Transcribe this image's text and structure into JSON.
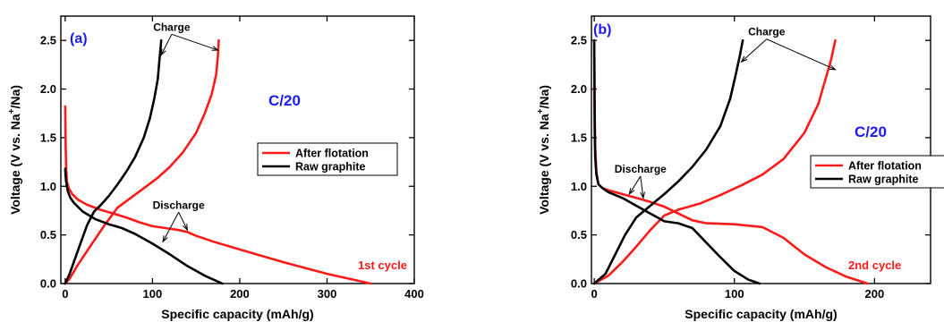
{
  "colors": {
    "after_flotation": "#ff1a1a",
    "raw_graphite": "#000000",
    "panel_label": "#1a1aff",
    "rate": "#1a1aff",
    "cycle": "#ff1a1a"
  },
  "chart_data": [
    {
      "type": "line",
      "panel_label": "(a)",
      "xlabel": "Specific capacity (mAh/g)",
      "ylabel": "Voltage (V vs. Na",
      "ylabel_sup": "+",
      "ylabel_tail": "/Na)",
      "xlim": [
        -5,
        400
      ],
      "ylim": [
        0,
        2.75
      ],
      "xticks": [
        0,
        100,
        200,
        300,
        400
      ],
      "xtick_labels": [
        "0",
        "100",
        "200",
        "300",
        "400"
      ],
      "yticks": [
        0,
        0.5,
        1.0,
        1.5,
        2.0,
        2.5
      ],
      "ytick_labels": [
        "0.0",
        "0.5",
        "1.0",
        "1.5",
        "2.0",
        "2.5"
      ],
      "rate_label": "C/20",
      "cycle_label": "1st cycle",
      "legend_placement": "center-right",
      "legend": [
        "After flotation",
        "Raw graphite"
      ],
      "annotations": [
        {
          "text": "Charge",
          "anchor": [
            122,
            2.6
          ],
          "targets": [
            [
              110,
              2.35
            ],
            [
              175,
              2.4
            ]
          ]
        },
        {
          "text": "Discharge",
          "anchor": [
            130,
            0.77
          ],
          "targets": [
            [
              112,
              0.43
            ],
            [
              140,
              0.55
            ]
          ]
        }
      ],
      "series": [
        {
          "name": "After flotation",
          "segment": "discharge",
          "x": [
            0,
            0.5,
            1,
            2,
            4,
            8,
            15,
            25,
            40,
            55,
            70,
            85,
            100,
            115,
            130,
            140,
            150,
            170,
            200,
            250,
            300,
            350
          ],
          "y": [
            1.82,
            1.4,
            1.2,
            1.05,
            0.98,
            0.92,
            0.86,
            0.81,
            0.76,
            0.72,
            0.68,
            0.63,
            0.59,
            0.57,
            0.55,
            0.53,
            0.49,
            0.43,
            0.35,
            0.22,
            0.1,
            0.0
          ]
        },
        {
          "name": "After flotation",
          "segment": "charge",
          "x": [
            0,
            5,
            15,
            30,
            45,
            55,
            60,
            75,
            90,
            105,
            120,
            135,
            150,
            160,
            168,
            173,
            175,
            176
          ],
          "y": [
            0.0,
            0.05,
            0.2,
            0.4,
            0.6,
            0.72,
            0.78,
            0.88,
            0.98,
            1.08,
            1.2,
            1.35,
            1.55,
            1.75,
            1.95,
            2.15,
            2.35,
            2.5
          ]
        },
        {
          "name": "Raw graphite",
          "segment": "discharge",
          "x": [
            0,
            0.5,
            1,
            2,
            3,
            6,
            10,
            20,
            35,
            50,
            65,
            80,
            100,
            120,
            140,
            160,
            180
          ],
          "y": [
            1.18,
            1.1,
            1.05,
            1.0,
            0.95,
            0.88,
            0.83,
            0.74,
            0.66,
            0.61,
            0.57,
            0.51,
            0.41,
            0.3,
            0.18,
            0.08,
            0.0
          ]
        },
        {
          "name": "Raw graphite",
          "segment": "charge",
          "x": [
            0,
            5,
            15,
            25,
            33,
            40,
            50,
            60,
            70,
            80,
            90,
            97,
            102,
            106,
            108,
            110
          ],
          "y": [
            0.0,
            0.1,
            0.35,
            0.6,
            0.74,
            0.8,
            0.9,
            1.02,
            1.15,
            1.3,
            1.5,
            1.7,
            1.9,
            2.1,
            2.3,
            2.5
          ]
        }
      ]
    },
    {
      "type": "line",
      "panel_label": "(b)",
      "xlabel": "Specific capacity (mAh/g)",
      "ylabel": "Voltage (V vs. Na",
      "ylabel_sup": "+",
      "ylabel_tail": "/Na)",
      "xlim": [
        -2,
        240
      ],
      "ylim": [
        0,
        2.75
      ],
      "xticks": [
        0,
        100,
        200
      ],
      "xtick_labels": [
        "0",
        "100",
        "200"
      ],
      "yticks": [
        0,
        0.5,
        1.0,
        1.5,
        2.0,
        2.5
      ],
      "ytick_labels": [
        "0.0",
        "0.5",
        "1.0",
        "1.5",
        "2.0",
        "2.5"
      ],
      "rate_label": "C/20",
      "cycle_label": "2nd cycle",
      "legend_placement": "center-right",
      "legend": [
        "After flotation",
        "Raw graphite"
      ],
      "annotations": [
        {
          "text": "Charge",
          "anchor": [
            123,
            2.55
          ],
          "targets": [
            [
              105,
              2.28
            ],
            [
              172,
              2.2
            ]
          ]
        },
        {
          "text": "Discharge",
          "anchor": [
            33,
            1.14
          ],
          "targets": [
            [
              25,
              0.92
            ],
            [
              35,
              0.88
            ]
          ]
        }
      ],
      "series": [
        {
          "name": "After flotation",
          "segment": "discharge",
          "x": [
            0,
            0.3,
            0.7,
            1.5,
            3,
            6,
            10,
            20,
            30,
            40,
            50,
            60,
            70,
            80,
            100,
            120,
            135,
            150,
            165,
            180,
            195
          ],
          "y": [
            2.5,
            1.8,
            1.4,
            1.15,
            1.02,
            0.98,
            0.96,
            0.92,
            0.88,
            0.84,
            0.79,
            0.72,
            0.65,
            0.62,
            0.61,
            0.58,
            0.47,
            0.3,
            0.17,
            0.07,
            0.0
          ]
        },
        {
          "name": "After flotation",
          "segment": "charge",
          "x": [
            0,
            10,
            20,
            30,
            40,
            50,
            60,
            75,
            90,
            105,
            120,
            135,
            150,
            160,
            165,
            169,
            172
          ],
          "y": [
            0.0,
            0.08,
            0.22,
            0.38,
            0.55,
            0.7,
            0.76,
            0.82,
            0.91,
            1.01,
            1.12,
            1.28,
            1.55,
            1.85,
            2.1,
            2.3,
            2.5
          ]
        },
        {
          "name": "Raw graphite",
          "segment": "discharge",
          "x": [
            0,
            0.3,
            0.7,
            1.5,
            3,
            6,
            10,
            20,
            30,
            40,
            50,
            60,
            70,
            80,
            90,
            100,
            110,
            118
          ],
          "y": [
            2.5,
            1.6,
            1.3,
            1.12,
            1.02,
            0.98,
            0.94,
            0.88,
            0.8,
            0.72,
            0.64,
            0.62,
            0.57,
            0.42,
            0.27,
            0.13,
            0.04,
            0.0
          ]
        },
        {
          "name": "Raw graphite",
          "segment": "charge",
          "x": [
            0,
            8,
            15,
            22,
            30,
            40,
            50,
            60,
            70,
            80,
            90,
            97,
            101,
            104,
            106
          ],
          "y": [
            0.0,
            0.1,
            0.3,
            0.5,
            0.68,
            0.8,
            0.92,
            1.05,
            1.2,
            1.38,
            1.62,
            1.9,
            2.15,
            2.35,
            2.5
          ]
        }
      ]
    }
  ]
}
